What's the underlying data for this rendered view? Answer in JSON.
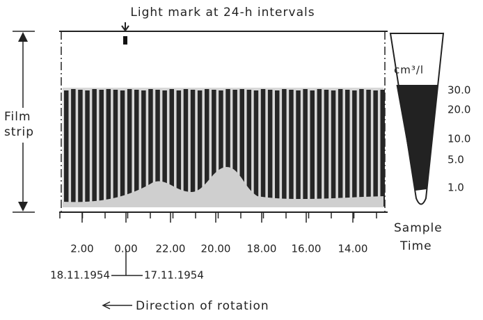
{
  "header": {
    "title": "Light mark at 24-h intervals"
  },
  "film_label": [
    "Film",
    "strip"
  ],
  "scale": {
    "unit": "cm³/l",
    "labels": [
      "30.0",
      "20.0",
      "10.0",
      "5.0",
      "1.0"
    ]
  },
  "sample_label": "Sample",
  "time_label": "Time",
  "time_ticks": [
    "2.00",
    "0.00",
    "22.00",
    "20.00",
    "18.00",
    "16.00",
    "14.00"
  ],
  "dates": [
    "18.11.1954",
    "17.11.1954"
  ],
  "footer": "Direction of rotation"
}
